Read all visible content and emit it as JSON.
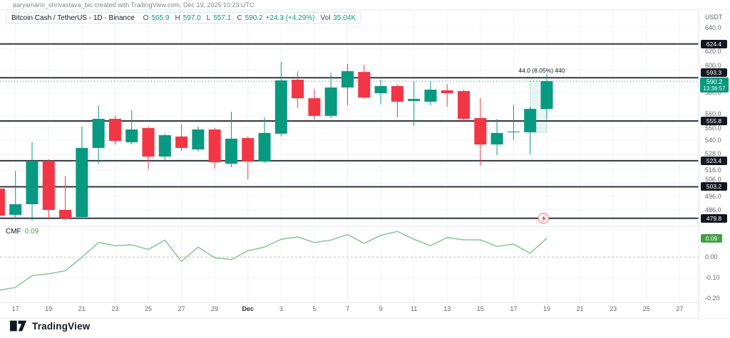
{
  "attribution": "aaryamann_shrivastava_bic created with TradingView.com, Dec 19, 2025 10:23 UTC",
  "legend": {
    "title": "Bitcoin Cash / TetherUS - 1D - Binance",
    "o_label": "O",
    "o": "565.9",
    "h_label": "H",
    "h": "597.0",
    "l_label": "L",
    "l": "557.1",
    "c_label": "C",
    "c": "590.2",
    "change": "+24.3 (+4.29%)",
    "vol_label": "Vol",
    "vol": "35.04K"
  },
  "axis": {
    "currency": "USDT",
    "last_price": "590.2",
    "countdown": "13:36:57"
  },
  "indicator": {
    "name": "CMF",
    "value": "0.09"
  },
  "footer": {
    "logo_text": "TradingView"
  },
  "colors": {
    "up": "#089981",
    "down": "#f23645",
    "hline": "#32363e",
    "label_bg": "#131722",
    "indicator_line": "#7dc487",
    "indicator_label_bg": "#43a047",
    "grid": "#f0f3fa",
    "separator": "#e0e3eb",
    "zero_line": "#b6bac3"
  },
  "chart_data": {
    "type": "candlestick",
    "title": "Bitcoin Cash / TetherUS, 1D, Binance",
    "price_scale_type": "log",
    "last_price": 590.2,
    "price_axis_ticks": [
      {
        "label": "640.0",
        "value": 640.0
      },
      {
        "label": "620.0",
        "value": 620.0
      },
      {
        "label": "600.0",
        "value": 600.0
      },
      {
        "label": "580.0",
        "value": 580.0
      },
      {
        "label": "560.0",
        "value": 560.0
      },
      {
        "label": "550.0",
        "value": 550.0
      },
      {
        "label": "540.0",
        "value": 540.0
      },
      {
        "label": "528.0",
        "value": 528.0
      },
      {
        "label": "516.0",
        "value": 516.0
      },
      {
        "label": "506.0",
        "value": 506.0
      },
      {
        "label": "496.0",
        "value": 496.0
      },
      {
        "label": "486.0",
        "value": 486.0
      }
    ],
    "hlines": [
      {
        "price": 624.4,
        "label": "624.4"
      },
      {
        "price": 593.3,
        "label": "593.3"
      },
      {
        "price": 555.8,
        "label": "555.8"
      },
      {
        "price": 523.4,
        "label": "523.4"
      },
      {
        "price": 503.2,
        "label": "503.2"
      },
      {
        "price": 479.8,
        "label": "479.8",
        "marker": "alert",
        "marker_i": 31.8
      }
    ],
    "x_axis_labels": [
      {
        "label": "17",
        "i": 0
      },
      {
        "label": "19",
        "i": 2
      },
      {
        "label": "21",
        "i": 4
      },
      {
        "label": "23",
        "i": 6
      },
      {
        "label": "25",
        "i": 8
      },
      {
        "label": "27",
        "i": 10
      },
      {
        "label": "29",
        "i": 12
      },
      {
        "label": "Dec",
        "i": 14,
        "strong": true
      },
      {
        "label": "3",
        "i": 16
      },
      {
        "label": "5",
        "i": 18
      },
      {
        "label": "7",
        "i": 20
      },
      {
        "label": "9",
        "i": 22
      },
      {
        "label": "11",
        "i": 24
      },
      {
        "label": "13",
        "i": 26
      },
      {
        "label": "15",
        "i": 28
      },
      {
        "label": "17",
        "i": 30
      },
      {
        "label": "19",
        "i": 32
      },
      {
        "label": "21",
        "i": 34
      },
      {
        "label": "23",
        "i": 36
      },
      {
        "label": "25",
        "i": 38
      },
      {
        "label": "27",
        "i": 40
      }
    ],
    "candles": [
      {
        "date": "Nov 16",
        "o": 501.8,
        "h": 502.9,
        "l": 480.1,
        "c": 481.7
      },
      {
        "date": "Nov 17",
        "o": 482.3,
        "h": 515.5,
        "l": 479.7,
        "c": 490.1
      },
      {
        "date": "Nov 18",
        "o": 490.1,
        "h": 538.2,
        "l": 478.1,
        "c": 523.3
      },
      {
        "date": "Nov 19",
        "o": 523.3,
        "h": 524.4,
        "l": 479.2,
        "c": 485.9
      },
      {
        "date": "Nov 20",
        "o": 485.9,
        "h": 511.6,
        "l": 478.6,
        "c": 479.7
      },
      {
        "date": "Nov 21",
        "o": 480.7,
        "h": 551.1,
        "l": 479.2,
        "c": 533.6
      },
      {
        "date": "Nov 22",
        "o": 533.6,
        "h": 569.1,
        "l": 521.0,
        "c": 557.6
      },
      {
        "date": "Nov 23",
        "o": 557.6,
        "h": 560.1,
        "l": 536.4,
        "c": 539.3
      },
      {
        "date": "Nov 24",
        "o": 538.2,
        "h": 564.8,
        "l": 536.4,
        "c": 548.7
      },
      {
        "date": "Nov 25",
        "o": 549.9,
        "h": 551.1,
        "l": 516.6,
        "c": 526.7
      },
      {
        "date": "Nov 26",
        "o": 526.7,
        "h": 545.2,
        "l": 523.9,
        "c": 544.0
      },
      {
        "date": "Nov 27",
        "o": 542.9,
        "h": 552.9,
        "l": 531.3,
        "c": 533.6
      },
      {
        "date": "Nov 28",
        "o": 532.4,
        "h": 551.1,
        "l": 530.8,
        "c": 548.7
      },
      {
        "date": "Nov 29",
        "o": 548.7,
        "h": 549.9,
        "l": 517.2,
        "c": 522.2
      },
      {
        "date": "Nov 30",
        "o": 521.0,
        "h": 563.6,
        "l": 518.3,
        "c": 541.1
      },
      {
        "date": "Dec 1",
        "o": 541.6,
        "h": 542.9,
        "l": 508.9,
        "c": 522.7
      },
      {
        "date": "Dec 2",
        "o": 522.7,
        "h": 558.9,
        "l": 521.6,
        "c": 545.8
      },
      {
        "date": "Dec 3",
        "o": 545.2,
        "h": 607.6,
        "l": 542.9,
        "c": 590.9
      },
      {
        "date": "Dec 4",
        "o": 591.5,
        "h": 599.2,
        "l": 566.6,
        "c": 575.2
      },
      {
        "date": "Dec 5",
        "o": 575.2,
        "h": 583.3,
        "l": 557.0,
        "c": 560.1
      },
      {
        "date": "Dec 6",
        "o": 560.1,
        "h": 597.9,
        "l": 558.3,
        "c": 584.6
      },
      {
        "date": "Dec 7",
        "o": 584.6,
        "h": 605.7,
        "l": 569.1,
        "c": 599.2
      },
      {
        "date": "Dec 8",
        "o": 598.5,
        "h": 605.0,
        "l": 574.6,
        "c": 575.8
      },
      {
        "date": "Dec 9",
        "o": 579.6,
        "h": 591.5,
        "l": 569.7,
        "c": 585.9
      },
      {
        "date": "Dec 10",
        "o": 585.9,
        "h": 587.2,
        "l": 558.9,
        "c": 572.2
      },
      {
        "date": "Dec 11",
        "o": 572.8,
        "h": 590.4,
        "l": 551.7,
        "c": 574.6
      },
      {
        "date": "Dec 12",
        "o": 572.2,
        "h": 590.4,
        "l": 569.1,
        "c": 582.7
      },
      {
        "date": "Dec 13",
        "o": 582.1,
        "h": 587.7,
        "l": 567.9,
        "c": 579.6
      },
      {
        "date": "Dec 14",
        "o": 581.5,
        "h": 582.7,
        "l": 554.7,
        "c": 557.6
      },
      {
        "date": "Dec 15",
        "o": 558.3,
        "h": 575.2,
        "l": 519.4,
        "c": 536.4
      },
      {
        "date": "Dec 16",
        "o": 536.4,
        "h": 557.6,
        "l": 527.8,
        "c": 545.8
      },
      {
        "date": "Dec 17",
        "o": 546.4,
        "h": 569.5,
        "l": 539.9,
        "c": 547.0
      },
      {
        "date": "Dec 18",
        "o": 546.4,
        "h": 567.9,
        "l": 528.3,
        "c": 566.0
      },
      {
        "date": "Dec 19",
        "o": 565.9,
        "h": 597.0,
        "l": 557.1,
        "c": 590.2
      }
    ],
    "measure": {
      "label": "44.0 (8.05%) 440",
      "from": "Dec 18",
      "to": "Dec 19",
      "price_low": 546.3,
      "price_high": 590.3
    },
    "indicator": {
      "name": "CMF",
      "type": "line",
      "last": 0.092,
      "ticks": [
        {
          "label": "0.00",
          "value": 0.0
        },
        {
          "label": "-0.10",
          "value": -0.1
        },
        {
          "label": "-0.20",
          "value": -0.2
        }
      ],
      "values": [
        -0.162,
        -0.148,
        -0.09,
        -0.081,
        -0.067,
        -0.001,
        0.071,
        0.055,
        0.06,
        0.037,
        0.083,
        -0.021,
        0.049,
        -0.003,
        -0.012,
        0.031,
        0.049,
        0.087,
        0.098,
        0.071,
        0.083,
        0.11,
        0.067,
        0.106,
        0.125,
        0.087,
        0.055,
        0.095,
        0.084,
        0.084,
        0.052,
        0.063,
        0.019,
        0.092
      ]
    }
  }
}
